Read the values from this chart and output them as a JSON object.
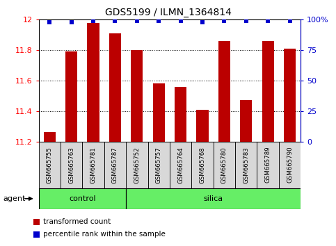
{
  "title": "GDS5199 / ILMN_1364814",
  "samples": [
    "GSM665755",
    "GSM665763",
    "GSM665781",
    "GSM665787",
    "GSM665752",
    "GSM665757",
    "GSM665764",
    "GSM665768",
    "GSM665780",
    "GSM665783",
    "GSM665789",
    "GSM665790"
  ],
  "bar_values": [
    11.26,
    11.79,
    11.98,
    11.91,
    11.8,
    11.58,
    11.56,
    11.41,
    11.86,
    11.47,
    11.86,
    11.81
  ],
  "percentile_values": [
    98,
    98,
    99,
    99,
    99,
    99,
    99,
    98,
    99,
    99,
    99,
    99
  ],
  "bar_color": "#bb0000",
  "dot_color": "#0000cc",
  "ylim_left": [
    11.2,
    12.0
  ],
  "ylim_right": [
    0,
    100
  ],
  "yticks_left": [
    11.2,
    11.4,
    11.6,
    11.8,
    12.0
  ],
  "ytick_labels_left": [
    "11.2",
    "11.4",
    "11.6",
    "11.8",
    "12"
  ],
  "yticks_right": [
    0,
    25,
    50,
    75,
    100
  ],
  "ytick_labels_right": [
    "0",
    "25",
    "50",
    "75",
    "100%"
  ],
  "control_count": 4,
  "silica_count": 8,
  "control_label": "control",
  "silica_label": "silica",
  "agent_label": "agent",
  "legend_bar_label": "transformed count",
  "legend_dot_label": "percentile rank within the sample",
  "bar_width": 0.55,
  "plot_bg": "#ffffff",
  "sample_box_color": "#d8d8d8",
  "group_box_color": "#66ee66"
}
